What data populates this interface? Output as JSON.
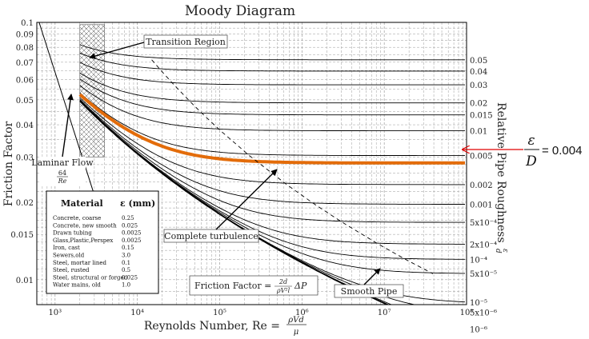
{
  "chart_data": {
    "type": "line",
    "title": "Moody Diagram",
    "xlabel": "Reynolds Number, Re = ρVd/μ",
    "ylabel": "Friction Factor",
    "y2label": "Relative Pipe Roughness ε/d",
    "xscale": "log",
    "yscale": "log",
    "xlim": [
      600,
      100000000
    ],
    "ylim": [
      0.008,
      0.1
    ],
    "grid": true,
    "x_ticks": [
      {
        "v": 1000,
        "label": "10³"
      },
      {
        "v": 10000,
        "label": "10⁴"
      },
      {
        "v": 100000,
        "label": "10⁵"
      },
      {
        "v": 1000000,
        "label": "10⁶"
      },
      {
        "v": 10000000,
        "label": "10⁷"
      },
      {
        "v": 100000000,
        "label": "10⁸"
      }
    ],
    "y_ticks": [
      {
        "v": 0.1,
        "label": "0.1"
      },
      {
        "v": 0.09,
        "label": "0.09"
      },
      {
        "v": 0.08,
        "label": "0.08"
      },
      {
        "v": 0.07,
        "label": "0.07"
      },
      {
        "v": 0.06,
        "label": "0.06"
      },
      {
        "v": 0.05,
        "label": "0.05"
      },
      {
        "v": 0.04,
        "label": "0.04"
      },
      {
        "v": 0.03,
        "label": "0.03"
      },
      {
        "v": 0.02,
        "label": "0.02"
      },
      {
        "v": 0.015,
        "label": "0.015"
      },
      {
        "v": 0.01,
        "label": "0.01"
      }
    ],
    "roughness_curves": [
      {
        "rr": 0.05,
        "label": "0.05"
      },
      {
        "rr": 0.04,
        "label": "0.04"
      },
      {
        "rr": 0.03,
        "label": "0.03"
      },
      {
        "rr": 0.02,
        "label": "0.02"
      },
      {
        "rr": 0.015,
        "label": "0.015"
      },
      {
        "rr": 0.01,
        "label": "0.01"
      },
      {
        "rr": 0.005,
        "label": "0.005"
      },
      {
        "rr": 0.002,
        "label": "0.002"
      },
      {
        "rr": 0.001,
        "label": "0.001"
      },
      {
        "rr": 0.0005,
        "label": "5x10⁻⁴"
      },
      {
        "rr": 0.0002,
        "label": "2x10⁻⁴"
      },
      {
        "rr": 0.0001,
        "label": "10⁻⁴"
      },
      {
        "rr": 5e-05,
        "label": "5x10⁻⁵"
      },
      {
        "rr": 1e-05,
        "label": "10⁻⁵"
      },
      {
        "rr": 5e-06,
        "label": "5x10⁻⁶"
      },
      {
        "rr": 1e-06,
        "label": "10⁻⁶"
      },
      {
        "rr": 0,
        "label": ""
      }
    ],
    "highlight": {
      "rr": 0.004,
      "color": "#e36c0a"
    },
    "laminar": {
      "x_range": [
        640,
        3200
      ]
    },
    "transition_region": {
      "x_range": [
        2000,
        4000
      ]
    },
    "colors": {
      "curves": "#000000",
      "highlight": "#e36c0a",
      "arrow": "#e00000",
      "grid": "#9a9a9a",
      "dashed": "#000000"
    }
  },
  "annotations": {
    "transition": "Transition Region",
    "laminar_title": "Laminar Flow",
    "laminar_num": "64",
    "laminar_den": "Re",
    "complete_turb": "Complete turbulence",
    "smooth_pipe": "Smooth Pipe",
    "friction_eq_prefix": "Friction Factor =",
    "friction_eq_num": "2d",
    "friction_eq_den": "ρV²l",
    "friction_eq_suffix": "ΔP",
    "xlabel_prefix": "Reynolds Number, Re =",
    "xlabel_num": "ρVd",
    "xlabel_den": "μ",
    "y2label_text": "Relative Pipe Roughness",
    "y2label_num": "ε",
    "y2label_den": "d",
    "callout_num": "ε",
    "callout_den": "D",
    "callout_value": "= 0.004"
  },
  "material_table": {
    "header_material": "Material",
    "header_eps": "ε (mm)",
    "rows": [
      {
        "material": "Concrete, coarse",
        "eps": "0.25"
      },
      {
        "material": "Concrete, new smooth",
        "eps": "0.025"
      },
      {
        "material": "Drawn tubing",
        "eps": "0.0025"
      },
      {
        "material": "Glass,Plastic,Perspex",
        "eps": "0.0025"
      },
      {
        "material": "Iron, cast",
        "eps": "0.15"
      },
      {
        "material": "Sewers,old",
        "eps": "3.0"
      },
      {
        "material": "Steel, mortar lined",
        "eps": "0.1"
      },
      {
        "material": "Steel, rusted",
        "eps": "0.5"
      },
      {
        "material": "Steel, structural or forged",
        "eps": "0.025"
      },
      {
        "material": "Water mains, old",
        "eps": "1.0"
      }
    ]
  }
}
